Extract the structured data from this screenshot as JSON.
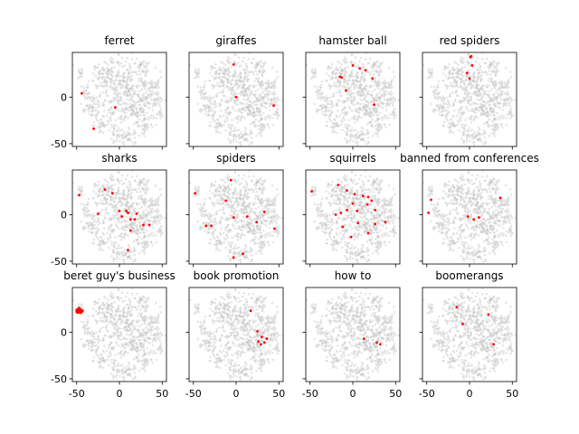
{
  "chart_data": {
    "type": "scatter",
    "layout": "3x4 small multiples",
    "xlim": [
      -55,
      55
    ],
    "ylim": [
      -53,
      48
    ],
    "xticks": [
      -50,
      0,
      50
    ],
    "yticks": [
      -50,
      0
    ],
    "sharex": true,
    "sharey": true,
    "grid": false,
    "background_points_color": "#c8c8c8",
    "highlight_color": "#ff0000",
    "background_clusters": [
      {
        "cx": -45,
        "cy": 25,
        "r": 3,
        "n": 14
      },
      {
        "cx": -40,
        "cy": 5,
        "r": 4,
        "n": 20
      },
      {
        "cx": -16,
        "cy": 23,
        "r": 7,
        "n": 55
      },
      {
        "cx": -32,
        "cy": -12,
        "r": 5,
        "n": 40
      },
      {
        "cx": -18,
        "cy": -30,
        "r": 4,
        "n": 25
      },
      {
        "cx": -5,
        "cy": 5,
        "r": 18,
        "n": 190
      },
      {
        "cx": 15,
        "cy": -3,
        "r": 18,
        "n": 170
      },
      {
        "cx": 8,
        "cy": 20,
        "r": 12,
        "n": 90
      },
      {
        "cx": 20,
        "cy": -20,
        "r": 8,
        "n": 55
      },
      {
        "cx": -5,
        "cy": -40,
        "r": 4,
        "n": 28
      },
      {
        "cx": 10,
        "cy": -43,
        "r": 5,
        "n": 35
      },
      {
        "cx": 30,
        "cy": -32,
        "r": 4,
        "n": 25
      },
      {
        "cx": 38,
        "cy": 10,
        "r": 5,
        "n": 30
      },
      {
        "cx": 43,
        "cy": -5,
        "r": 5,
        "n": 30
      },
      {
        "cx": 47,
        "cy": -15,
        "r": 3,
        "n": 12
      },
      {
        "cx": 28,
        "cy": 32,
        "r": 5,
        "n": 25
      },
      {
        "cx": 45,
        "cy": 12,
        "r": 2,
        "n": 8
      }
    ],
    "panels": [
      {
        "title": "ferret",
        "points": [
          [
            -44,
            4
          ],
          [
            -5,
            -11
          ],
          [
            -30,
            -34
          ]
        ]
      },
      {
        "title": "giraffes",
        "points": [
          [
            -3,
            35
          ],
          [
            0,
            0
          ],
          [
            44,
            -9
          ]
        ]
      },
      {
        "title": "hamster ball",
        "points": [
          [
            -15,
            22
          ],
          [
            -13,
            21
          ],
          [
            0,
            34
          ],
          [
            8,
            31
          ],
          [
            15,
            29
          ],
          [
            23,
            20
          ],
          [
            -8,
            7
          ],
          [
            25,
            -8
          ]
        ]
      },
      {
        "title": "red spiders",
        "points": [
          [
            1,
            43
          ],
          [
            2,
            44
          ],
          [
            3,
            34
          ],
          [
            -3,
            26
          ],
          [
            0,
            20
          ]
        ]
      },
      {
        "title": "sharks",
        "points": [
          [
            -47,
            21
          ],
          [
            -17,
            27
          ],
          [
            -8,
            23
          ],
          [
            -25,
            1
          ],
          [
            0,
            4
          ],
          [
            3,
            -2
          ],
          [
            8,
            4
          ],
          [
            10,
            2
          ],
          [
            13,
            -5
          ],
          [
            20,
            1
          ],
          [
            18,
            -5
          ],
          [
            13,
            -17
          ],
          [
            28,
            -11
          ],
          [
            35,
            -11
          ],
          [
            10,
            -38
          ]
        ]
      },
      {
        "title": "spiders",
        "points": [
          [
            -48,
            23
          ],
          [
            -6,
            37
          ],
          [
            -12,
            15
          ],
          [
            -3,
            -3
          ],
          [
            -35,
            -12
          ],
          [
            -29,
            -12
          ],
          [
            13,
            -2
          ],
          [
            24,
            -8
          ],
          [
            33,
            3
          ],
          [
            45,
            -15
          ],
          [
            -3,
            -46
          ],
          [
            8,
            -42
          ]
        ]
      },
      {
        "title": "squirrels",
        "points": [
          [
            -48,
            25
          ],
          [
            -17,
            32
          ],
          [
            -7,
            26
          ],
          [
            2,
            22
          ],
          [
            12,
            20
          ],
          [
            18,
            19
          ],
          [
            22,
            15
          ],
          [
            -20,
            0
          ],
          [
            -14,
            2
          ],
          [
            -7,
            5
          ],
          [
            0,
            12
          ],
          [
            5,
            4
          ],
          [
            17,
            11
          ],
          [
            26,
            5
          ],
          [
            -12,
            -13
          ],
          [
            -2,
            -24
          ],
          [
            6,
            -9
          ],
          [
            18,
            -20
          ],
          [
            26,
            -10
          ],
          [
            38,
            -8
          ]
        ]
      },
      {
        "title": "banned from conferences",
        "points": [
          [
            -45,
            16
          ],
          [
            -48,
            2
          ],
          [
            -2,
            -2
          ],
          [
            5,
            -5
          ],
          [
            11,
            -3
          ],
          [
            36,
            18
          ]
        ]
      },
      {
        "title": "beret guy's business",
        "points": [
          [
            -50,
            24
          ],
          [
            -48,
            25
          ],
          [
            -47,
            22
          ],
          [
            -46,
            23
          ],
          [
            -45,
            24
          ],
          [
            -49,
            21
          ],
          [
            -47,
            26
          ],
          [
            -46,
            21
          ],
          [
            -44,
            22
          ],
          [
            -48,
            23
          ],
          [
            -50,
            22
          ],
          [
            -45,
            21
          ],
          [
            -43,
            23
          ]
        ]
      },
      {
        "title": "book promotion",
        "points": [
          [
            17,
            23
          ],
          [
            25,
            1
          ],
          [
            26,
            -10
          ],
          [
            29,
            -13
          ],
          [
            33,
            -11
          ],
          [
            30,
            -5
          ],
          [
            36,
            -7
          ]
        ]
      },
      {
        "title": "how to",
        "points": [
          [
            13,
            -7
          ],
          [
            28,
            -11
          ],
          [
            32,
            -13
          ]
        ]
      },
      {
        "title": "boomerangs",
        "points": [
          [
            -15,
            27
          ],
          [
            -8,
            9
          ],
          [
            22,
            19
          ],
          [
            28,
            -13
          ]
        ]
      }
    ]
  }
}
